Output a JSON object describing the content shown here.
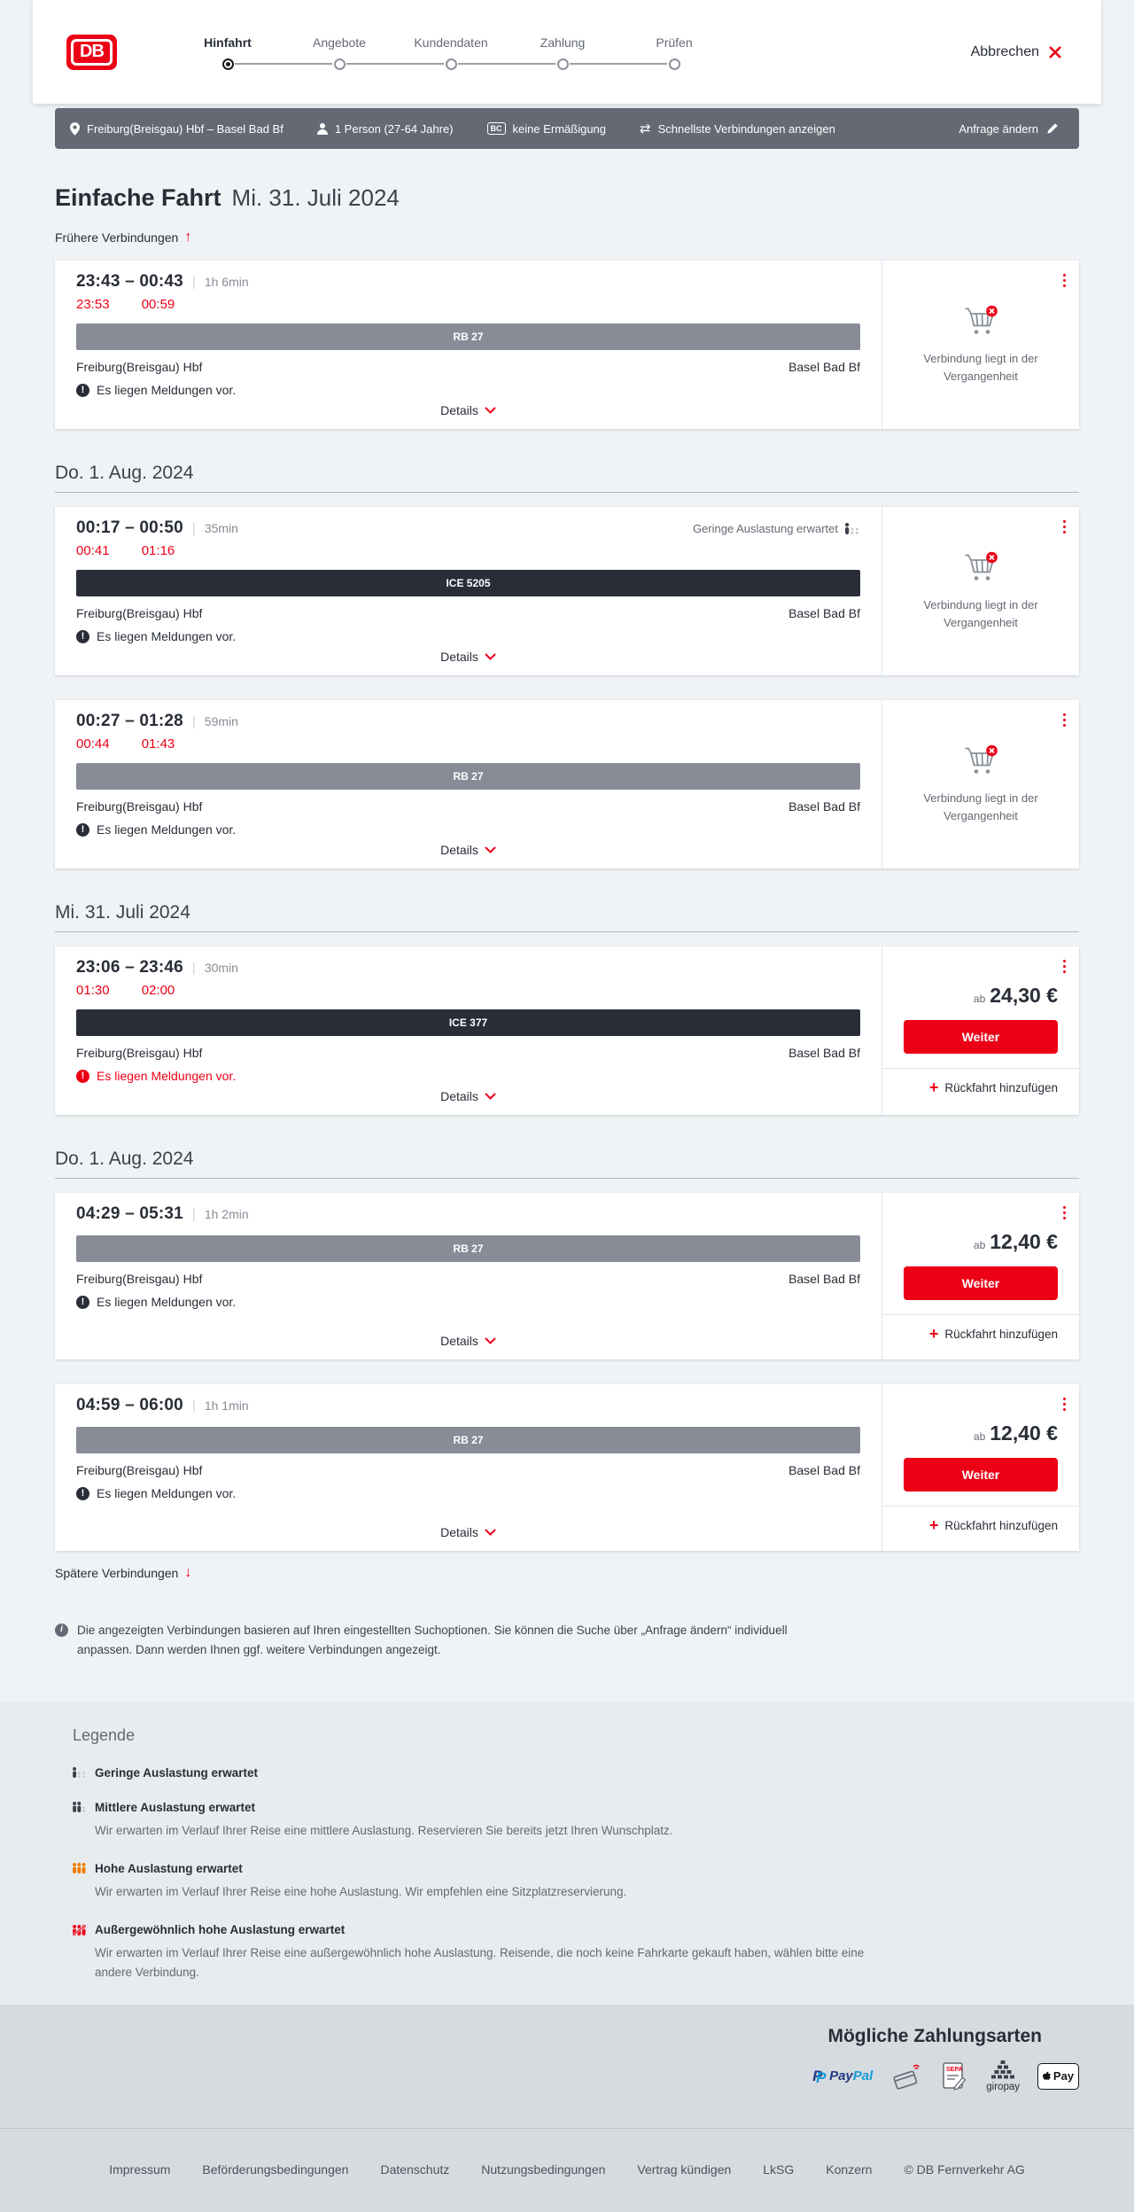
{
  "colors": {
    "brand_red": "#ec0016",
    "dark_text": "#282d37",
    "gray_text": "#646973",
    "muted_text": "#878c96",
    "regional_bar": "#878c96",
    "ice_bar": "#282d37",
    "filter_bar_bg": "#646973",
    "page_bg": "#f0f3f6",
    "legend_bg": "#e9ecef",
    "footer_bg": "#d6dbe0",
    "occupancy_high_orange": "#f07d00"
  },
  "header": {
    "logo_text": "DB",
    "cancel_label": "Abbrechen",
    "steps": [
      {
        "label": "Hinfahrt",
        "active": true
      },
      {
        "label": "Angebote",
        "active": false
      },
      {
        "label": "Kundendaten",
        "active": false
      },
      {
        "label": "Zahlung",
        "active": false
      },
      {
        "label": "Prüfen",
        "active": false
      }
    ]
  },
  "filter_bar": {
    "route": "Freiburg(Breisgau) Hbf – Basel Bad Bf",
    "passengers": "1 Person (27-64 Jahre)",
    "discount_badge": "BC",
    "discount": "keine Ermäßigung",
    "view_option": "Schnellste Verbindungen anzeigen",
    "edit_label": "Anfrage ändern"
  },
  "page": {
    "title": "Einfache Fahrt",
    "date": "Mi. 31. Juli 2024",
    "earlier_label": "Frühere Verbindungen",
    "later_label": "Spätere Verbindungen",
    "info_note": "Die angezeigten Verbindungen basieren auf Ihren eingestellten Suchoptionen. Sie können die Suche über „Anfrage ändern“ individuell anpassen. Dann werden Ihnen ggf. weitere Verbindungen angezeigt."
  },
  "card_labels": {
    "details": "Details",
    "message": "Es liegen Meldungen vor.",
    "past_note": "Verbindung liegt in der Vergangenheit",
    "price_prefix": "ab",
    "continue": "Weiter",
    "add_return": "Rückfahrt hinzufügen"
  },
  "sections": [
    {
      "heading": "",
      "connections": [
        {
          "times": "23:43 – 00:43",
          "duration": "1h 6min",
          "realtime_departure": "23:53",
          "realtime_arrival": "00:59",
          "train": "RB 27",
          "train_type": "regional",
          "from": "Freiburg(Breisgau) Hbf",
          "to": "Basel Bad Bf",
          "message_alert": false,
          "occupancy": "",
          "side": "past",
          "price": ""
        }
      ]
    },
    {
      "heading": "Do. 1. Aug. 2024",
      "connections": [
        {
          "times": "00:17 – 00:50",
          "duration": "35min",
          "realtime_departure": "00:41",
          "realtime_arrival": "01:16",
          "train": "ICE 5205",
          "train_type": "ice",
          "from": "Freiburg(Breisgau) Hbf",
          "to": "Basel Bad Bf",
          "message_alert": false,
          "occupancy": "Geringe Auslastung erwartet",
          "side": "past",
          "price": ""
        },
        {
          "times": "00:27 – 01:28",
          "duration": "59min",
          "realtime_departure": "00:44",
          "realtime_arrival": "01:43",
          "train": "RB 27",
          "train_type": "regional",
          "from": "Freiburg(Breisgau) Hbf",
          "to": "Basel Bad Bf",
          "message_alert": false,
          "occupancy": "",
          "side": "past",
          "price": ""
        }
      ]
    },
    {
      "heading": "Mi. 31. Juli 2024",
      "connections": [
        {
          "times": "23:06 – 23:46",
          "duration": "30min",
          "realtime_departure": "01:30",
          "realtime_arrival": "02:00",
          "train": "ICE 377",
          "train_type": "ice",
          "from": "Freiburg(Breisgau) Hbf",
          "to": "Basel Bad Bf",
          "message_alert": true,
          "occupancy": "",
          "side": "price",
          "price": "24,30 €"
        }
      ]
    },
    {
      "heading": "Do. 1. Aug. 2024",
      "connections": [
        {
          "times": "04:29 – 05:31",
          "duration": "1h 2min",
          "realtime_departure": "",
          "realtime_arrival": "",
          "train": "RB 27",
          "train_type": "regional",
          "from": "Freiburg(Breisgau) Hbf",
          "to": "Basel Bad Bf",
          "message_alert": false,
          "occupancy": "",
          "side": "price",
          "price": "12,40 €"
        },
        {
          "times": "04:59 – 06:00",
          "duration": "1h 1min",
          "realtime_departure": "",
          "realtime_arrival": "",
          "train": "RB 27",
          "train_type": "regional",
          "from": "Freiburg(Breisgau) Hbf",
          "to": "Basel Bad Bf",
          "message_alert": false,
          "occupancy": "",
          "side": "price",
          "price": "12,40 €"
        }
      ]
    }
  ],
  "legend": {
    "heading": "Legende",
    "items": [
      {
        "icon": "occupancy-low",
        "title": "Geringe Auslastung erwartet",
        "desc": ""
      },
      {
        "icon": "occupancy-medium",
        "title": "Mittlere Auslastung erwartet",
        "desc": "Wir erwarten im Verlauf Ihrer Reise eine mittlere Auslastung. Reservieren Sie bereits jetzt Ihren Wunschplatz."
      },
      {
        "icon": "occupancy-high",
        "title": "Hohe Auslastung erwartet",
        "desc": "Wir erwarten im Verlauf Ihrer Reise eine hohe Auslastung. Wir empfehlen eine Sitzplatzreservierung."
      },
      {
        "icon": "occupancy-exceptional",
        "title": "Außergewöhnlich hohe Auslastung erwartet",
        "desc": "Wir erwarten im Verlauf Ihrer Reise eine außergewöhnlich hohe Auslastung. Reisende, die noch keine Fahrkarte gekauft haben, wählen bitte eine andere Verbindung."
      }
    ]
  },
  "payment": {
    "heading": "Mögliche Zahlungsarten",
    "methods": [
      "PayPal",
      "Kreditkarte",
      "SEPA-Lastschrift",
      "giropay",
      "Apple Pay"
    ],
    "paypal_mark": "P",
    "paypal_pay": "Pay",
    "paypal_pal": "Pal",
    "sepa_text": "SEPA",
    "giropay_text": "giropay",
    "applepay_text": "Pay"
  },
  "footer": {
    "links": [
      "Impressum",
      "Beförderungsbedingungen",
      "Datenschutz",
      "Nutzungsbedingungen",
      "Vertrag kündigen",
      "LkSG",
      "Konzern"
    ],
    "copyright": "© DB Fernverkehr AG"
  }
}
